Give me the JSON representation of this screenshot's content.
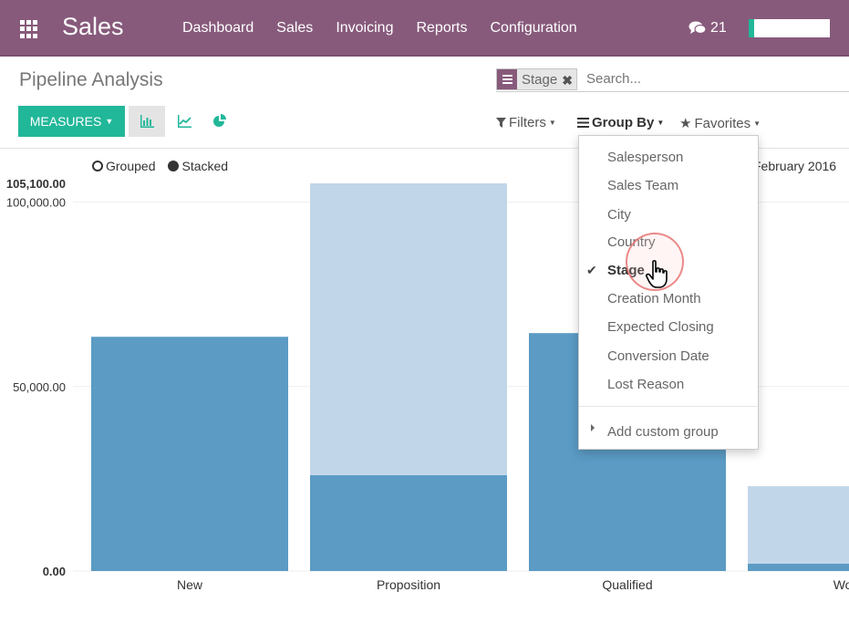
{
  "topbar": {
    "app_name": "Sales",
    "menu": [
      "Dashboard",
      "Sales",
      "Invoicing",
      "Reports",
      "Configuration"
    ],
    "message_count": "21"
  },
  "page": {
    "title": "Pipeline Analysis"
  },
  "search": {
    "facet_label": "Stage",
    "facet_remove": "✖",
    "placeholder": "Search..."
  },
  "toolbar": {
    "measures_label": "MEASURES",
    "filters_label": "Filters",
    "groupby_label": "Group By",
    "favorites_label": "Favorites"
  },
  "legend": {
    "grouped": "Grouped",
    "stacked": "Stacked",
    "period": "February 2016"
  },
  "dropdown": {
    "items": [
      {
        "label": "Salesperson",
        "selected": false
      },
      {
        "label": "Sales Team",
        "selected": false
      },
      {
        "label": "City",
        "selected": false
      },
      {
        "label": "Country",
        "selected": false
      },
      {
        "label": "Stage",
        "selected": true
      },
      {
        "label": "Creation Month",
        "selected": false
      },
      {
        "label": "Expected Closing",
        "selected": false
      },
      {
        "label": "Conversion Date",
        "selected": false
      },
      {
        "label": "Lost Reason",
        "selected": false
      }
    ],
    "custom_group": "Add custom group"
  },
  "colors": {
    "brand": "#875a7b",
    "accent": "#21b799",
    "series_dark": "#5b9bc4",
    "series_light": "#c2d6ea"
  },
  "chart_data": {
    "type": "bar",
    "stacked": true,
    "categories": [
      "New",
      "Proposition",
      "Qualified",
      "Won"
    ],
    "series": [
      {
        "values": [
          63500,
          26000,
          64500,
          2000
        ]
      },
      {
        "values": [
          0,
          79100,
          0,
          21000
        ]
      }
    ],
    "y_ticks": [
      "105,100.00",
      "100,000.00",
      "50,000.00",
      "0.00"
    ],
    "ylim": [
      0,
      105100
    ]
  }
}
